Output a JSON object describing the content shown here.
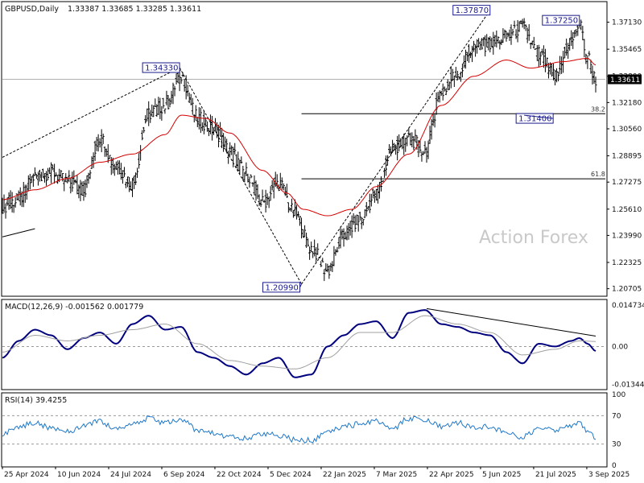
{
  "header": {
    "symbol": "GBPUSD,Daily",
    "ohlc": "1.33387 1.33685 1.33285 1.33611"
  },
  "watermark": "Action Forex",
  "colors": {
    "price_bars": "#000000",
    "sma_line": "#d40000",
    "macd_line": "#00007f",
    "signal_line": "#a0a0a0",
    "rsi_line": "#1f78c8",
    "annotation": "#1a1a8c",
    "grid": "#9a9a9a"
  },
  "chart_data": [
    {
      "type": "line",
      "panel": "price",
      "title": "GBPUSD,Daily 1.33387 1.33685 1.33285 1.33611",
      "ylim": [
        1.2034,
        1.383
      ],
      "y_ticks": [
        "1.37130",
        "1.35465",
        "1.33800",
        "1.32180",
        "1.30560",
        "1.28895",
        "1.27275",
        "1.25610",
        "1.23990",
        "1.22325",
        "1.20705"
      ],
      "current_price": "1.33611",
      "x_labels": [
        "25 Apr 2024",
        "10 Jun 2024",
        "24 Jul 2024",
        "6 Sep 2024",
        "22 Oct 2024",
        "5 Dec 2024",
        "22 Jan 2025",
        "7 Mar 2025",
        "22 Apr 2025",
        "5 Jun 2025",
        "21 Jul 2025",
        "3 Sep 2025"
      ],
      "x_index_range": [
        0,
        365
      ],
      "close_path": [
        [
          0,
          1.258
        ],
        [
          10,
          1.262
        ],
        [
          20,
          1.276
        ],
        [
          30,
          1.279
        ],
        [
          40,
          1.273
        ],
        [
          50,
          1.268
        ],
        [
          60,
          1.3
        ],
        [
          70,
          1.282
        ],
        [
          80,
          1.272
        ],
        [
          90,
          1.315
        ],
        [
          100,
          1.32
        ],
        [
          110,
          1.338
        ],
        [
          120,
          1.312
        ],
        [
          130,
          1.305
        ],
        [
          140,
          1.292
        ],
        [
          150,
          1.278
        ],
        [
          160,
          1.26
        ],
        [
          170,
          1.272
        ],
        [
          180,
          1.253
        ],
        [
          190,
          1.232
        ],
        [
          200,
          1.218
        ],
        [
          210,
          1.24
        ],
        [
          220,
          1.25
        ],
        [
          230,
          1.265
        ],
        [
          240,
          1.293
        ],
        [
          250,
          1.3
        ],
        [
          260,
          1.292
        ],
        [
          270,
          1.328
        ],
        [
          280,
          1.34
        ],
        [
          290,
          1.356
        ],
        [
          300,
          1.358
        ],
        [
          310,
          1.362
        ],
        [
          320,
          1.368
        ],
        [
          330,
          1.352
        ],
        [
          340,
          1.338
        ],
        [
          350,
          1.36
        ],
        [
          355,
          1.37
        ],
        [
          360,
          1.35
        ],
        [
          365,
          1.336
        ]
      ],
      "sma_path": [
        [
          0,
          1.262
        ],
        [
          20,
          1.268
        ],
        [
          40,
          1.275
        ],
        [
          60,
          1.285
        ],
        [
          80,
          1.29
        ],
        [
          100,
          1.302
        ],
        [
          110,
          1.314
        ],
        [
          125,
          1.312
        ],
        [
          140,
          1.303
        ],
        [
          160,
          1.28
        ],
        [
          175,
          1.266
        ],
        [
          185,
          1.256
        ],
        [
          200,
          1.252
        ],
        [
          215,
          1.256
        ],
        [
          230,
          1.27
        ],
        [
          250,
          1.29
        ],
        [
          270,
          1.32
        ],
        [
          290,
          1.338
        ],
        [
          310,
          1.348
        ],
        [
          325,
          1.343
        ],
        [
          345,
          1.347
        ],
        [
          360,
          1.349
        ],
        [
          365,
          1.345
        ]
      ],
      "annotations": [
        {
          "label": "1.34330",
          "x": 109,
          "y": 1.3433
        },
        {
          "label": "1.20990",
          "x": 184,
          "y": 1.2099
        },
        {
          "label": "1.37870",
          "x": 300,
          "y": 1.3787
        },
        {
          "label": "1.37250",
          "x": 355,
          "y": 1.3725
        },
        {
          "label": "1.31400",
          "x": 321,
          "y": 1.314
        }
      ],
      "fib_levels": [
        {
          "label": "38.2",
          "y": 1.3149,
          "x_start": 184
        },
        {
          "label": "61.8",
          "y": 1.2748,
          "x_start": 184
        }
      ],
      "horizontal_line": 1.33611,
      "trendlines": [
        [
          [
            0,
            1.288
          ],
          [
            109,
            1.3433
          ]
        ],
        [
          [
            109,
            1.3433
          ],
          [
            184,
            1.2099
          ]
        ],
        [
          [
            184,
            1.2099
          ],
          [
            300,
            1.3787
          ]
        ],
        [
          [
            0,
            1.239
          ],
          [
            20,
            1.244
          ]
        ]
      ]
    },
    {
      "type": "line",
      "panel": "macd",
      "title": "MACD(12,26,9) -0.001562 0.001779",
      "ylim": [
        -0.0148,
        0.0162
      ],
      "y_ticks": [
        "0.014734",
        "0.00",
        "-0.013442"
      ],
      "series": [
        {
          "name": "MACD",
          "points": [
            [
              0,
              -0.004
            ],
            [
              10,
              0.002
            ],
            [
              20,
              0.006
            ],
            [
              30,
              0.004
            ],
            [
              40,
              -0.001
            ],
            [
              50,
              0.003
            ],
            [
              60,
              0.005
            ],
            [
              70,
              0.001
            ],
            [
              80,
              0.008
            ],
            [
              90,
              0.011
            ],
            [
              100,
              0.006
            ],
            [
              110,
              0.007
            ],
            [
              120,
              -0.002
            ],
            [
              130,
              -0.004
            ],
            [
              140,
              -0.007
            ],
            [
              150,
              -0.01
            ],
            [
              160,
              -0.006
            ],
            [
              170,
              -0.004
            ],
            [
              180,
              -0.011
            ],
            [
              190,
              -0.01
            ],
            [
              200,
              0.0
            ],
            [
              210,
              0.004
            ],
            [
              220,
              0.008
            ],
            [
              230,
              0.009
            ],
            [
              240,
              0.003
            ],
            [
              250,
              0.012
            ],
            [
              260,
              0.013
            ],
            [
              270,
              0.008
            ],
            [
              280,
              0.007
            ],
            [
              290,
              0.005
            ],
            [
              300,
              0.004
            ],
            [
              310,
              -0.002
            ],
            [
              320,
              -0.006
            ],
            [
              330,
              0.001
            ],
            [
              340,
              0.0
            ],
            [
              350,
              0.002
            ],
            [
              355,
              0.003
            ],
            [
              360,
              0.001
            ],
            [
              365,
              -0.0016
            ]
          ]
        },
        {
          "name": "Signal",
          "points": [
            [
              0,
              -0.002
            ],
            [
              20,
              0.004
            ],
            [
              40,
              0.002
            ],
            [
              60,
              0.004
            ],
            [
              80,
              0.006
            ],
            [
              100,
              0.008
            ],
            [
              120,
              0.001
            ],
            [
              140,
              -0.005
            ],
            [
              160,
              -0.007
            ],
            [
              180,
              -0.008
            ],
            [
              200,
              -0.004
            ],
            [
              220,
              0.005
            ],
            [
              240,
              0.005
            ],
            [
              260,
              0.011
            ],
            [
              280,
              0.008
            ],
            [
              300,
              0.005
            ],
            [
              320,
              -0.003
            ],
            [
              340,
              -0.001
            ],
            [
              355,
              0.002
            ],
            [
              365,
              0.0018
            ]
          ]
        }
      ],
      "trendline": [
        [
          261,
          0.0135
        ],
        [
          365,
          0.0037
        ]
      ]
    },
    {
      "type": "line",
      "panel": "rsi",
      "title": "RSI(14) 39.4255",
      "ylim": [
        0,
        100
      ],
      "y_ticks": [
        "100",
        "70",
        "30",
        "0"
      ],
      "levels": [
        70,
        30
      ],
      "series": [
        {
          "name": "RSI(14)",
          "points": [
            [
              0,
              45
            ],
            [
              10,
              55
            ],
            [
              20,
              60
            ],
            [
              30,
              52
            ],
            [
              40,
              48
            ],
            [
              50,
              55
            ],
            [
              60,
              62
            ],
            [
              70,
              50
            ],
            [
              80,
              58
            ],
            [
              90,
              66
            ],
            [
              100,
              60
            ],
            [
              110,
              64
            ],
            [
              120,
              50
            ],
            [
              130,
              45
            ],
            [
              140,
              40
            ],
            [
              150,
              38
            ],
            [
              160,
              45
            ],
            [
              170,
              42
            ],
            [
              180,
              36
            ],
            [
              190,
              35
            ],
            [
              200,
              48
            ],
            [
              210,
              55
            ],
            [
              220,
              58
            ],
            [
              230,
              62
            ],
            [
              240,
              52
            ],
            [
              250,
              66
            ],
            [
              260,
              63
            ],
            [
              270,
              55
            ],
            [
              280,
              60
            ],
            [
              290,
              54
            ],
            [
              300,
              55
            ],
            [
              310,
              45
            ],
            [
              320,
              40
            ],
            [
              330,
              52
            ],
            [
              340,
              50
            ],
            [
              350,
              56
            ],
            [
              355,
              60
            ],
            [
              360,
              48
            ],
            [
              365,
              39.4
            ]
          ]
        }
      ]
    }
  ]
}
